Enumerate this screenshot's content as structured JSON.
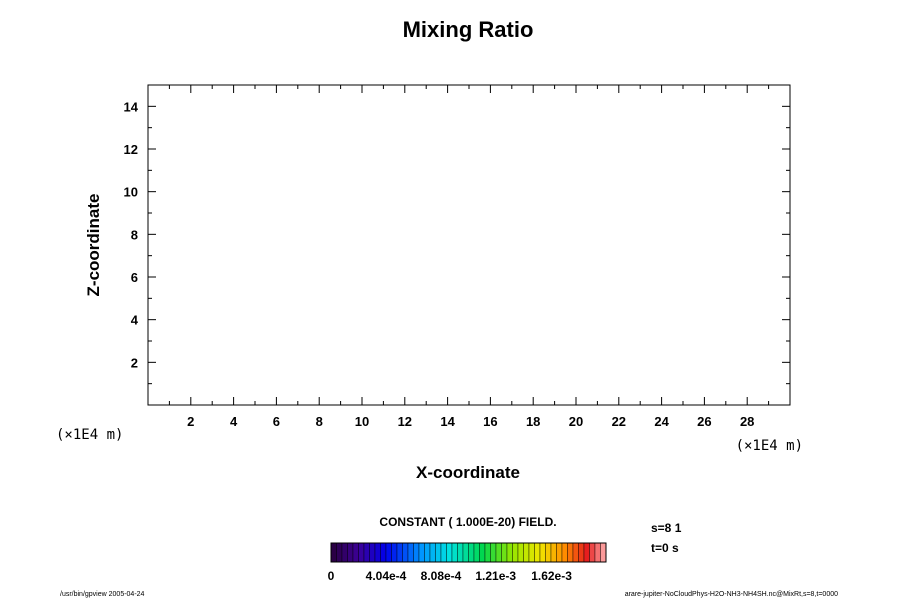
{
  "chart_data": {
    "type": "heatmap",
    "title": "Mixing Ratio",
    "xlabel": "X-coordinate",
    "ylabel": "Z-coordinate",
    "x_unit": "(×1E4 m)",
    "y_unit": "(×1E4 m)",
    "xlim": [
      0,
      30
    ],
    "ylim": [
      0,
      15
    ],
    "x_ticks_major": [
      2,
      4,
      6,
      8,
      10,
      12,
      14,
      16,
      18,
      20,
      22,
      24,
      26,
      28
    ],
    "y_ticks_major": [
      2,
      4,
      6,
      8,
      10,
      12,
      14
    ],
    "field_note": "CONSTANT ( 1.000E-20) FIELD.",
    "colorbar": {
      "tick_labels": [
        "0",
        "4.04e-4",
        "8.08e-4",
        "1.21e-3",
        "1.62e-3"
      ],
      "tick_values": [
        0,
        0.000404,
        0.000808,
        0.00121,
        0.00162
      ],
      "max": 0.00202,
      "colormap": "rainbow"
    },
    "info_lines": [
      "s=8 1",
      "t=0 s"
    ]
  },
  "footer": {
    "left": "/usr/bin/gpview 2005-04-24",
    "right": "arare-jupiter-NoCloudPhys-H2O-NH3-NH4SH.nc@MixRt,s=8,t=0000"
  }
}
